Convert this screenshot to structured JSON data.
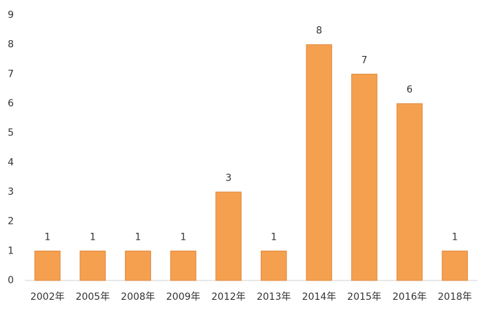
{
  "chart_data": {
    "type": "bar",
    "categories": [
      "2002年",
      "2005年",
      "2008年",
      "2009年",
      "2012年",
      "2013年",
      "2014年",
      "2015年",
      "2016年",
      "2018年"
    ],
    "values": [
      1,
      1,
      1,
      1,
      3,
      1,
      8,
      7,
      6,
      1
    ],
    "color": "#f5a04f",
    "ylim": [
      0,
      9
    ],
    "yticks": [
      0,
      1,
      2,
      3,
      4,
      5,
      6,
      7,
      8,
      9
    ],
    "grid": false,
    "data_labels": true
  }
}
